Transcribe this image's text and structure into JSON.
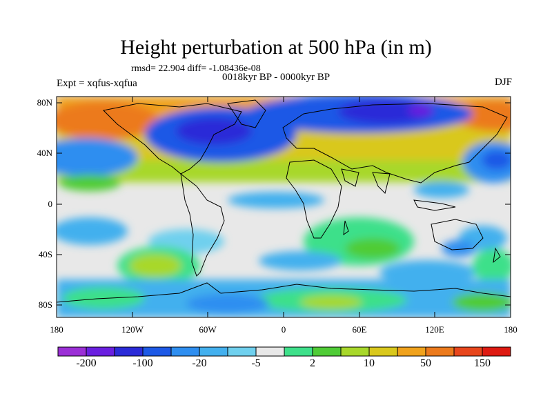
{
  "title": "Height perturbation at 500 hPa (in m)",
  "rmsd_line": "rmsd= 22.904 diff= -1.08436e-08",
  "subtitle": "0018kyr BP - 0000kyr BP",
  "experiment": "Expt = xqfus-xqfua",
  "season": "DJF",
  "lat_labels": [
    "80N",
    "40N",
    "0",
    "40S",
    "80S"
  ],
  "lon_labels": [
    "180",
    "120W",
    "60W",
    "0",
    "60E",
    "120E",
    "180"
  ],
  "colorbar": {
    "colors": [
      "#9b2fd6",
      "#6a1fe0",
      "#2b2bd8",
      "#1d59e6",
      "#2e8ef0",
      "#43b0ee",
      "#6fd0ee",
      "#e8e8e8",
      "#3ee08a",
      "#4fcc36",
      "#a8d82a",
      "#d9c81c",
      "#f0a21c",
      "#ec7a1c",
      "#e8461c",
      "#de1a12"
    ],
    "labels": [
      "-200",
      "-100",
      "-20",
      "-5",
      "2",
      "10",
      "50",
      "150"
    ]
  }
}
